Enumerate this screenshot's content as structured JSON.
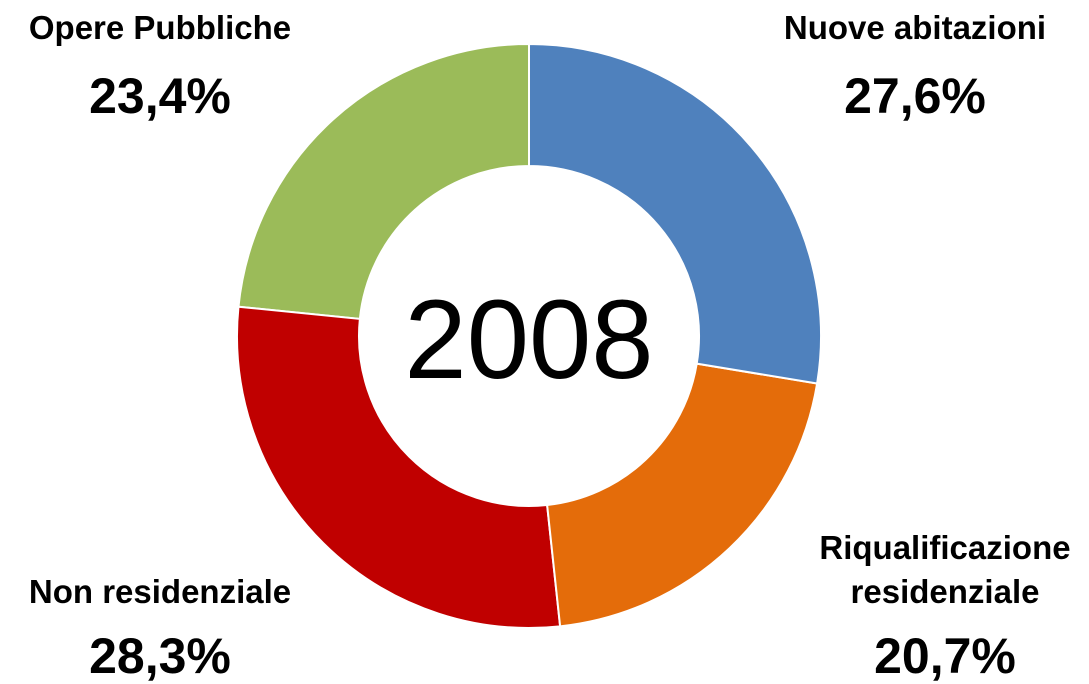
{
  "chart_data": {
    "type": "donut",
    "title": "2008",
    "categories": [
      "Nuove abitazioni",
      "Riqualificazione residenziale",
      "Non residenziale",
      "Opere Pubbliche"
    ],
    "values": [
      27.6,
      20.7,
      28.3,
      23.4
    ],
    "value_labels": [
      "27,6%",
      "20,7%",
      "28,3%",
      "23,4%"
    ],
    "colors": [
      "#4f81bd",
      "#e46c0a",
      "#c00000",
      "#9bbb59"
    ]
  }
}
